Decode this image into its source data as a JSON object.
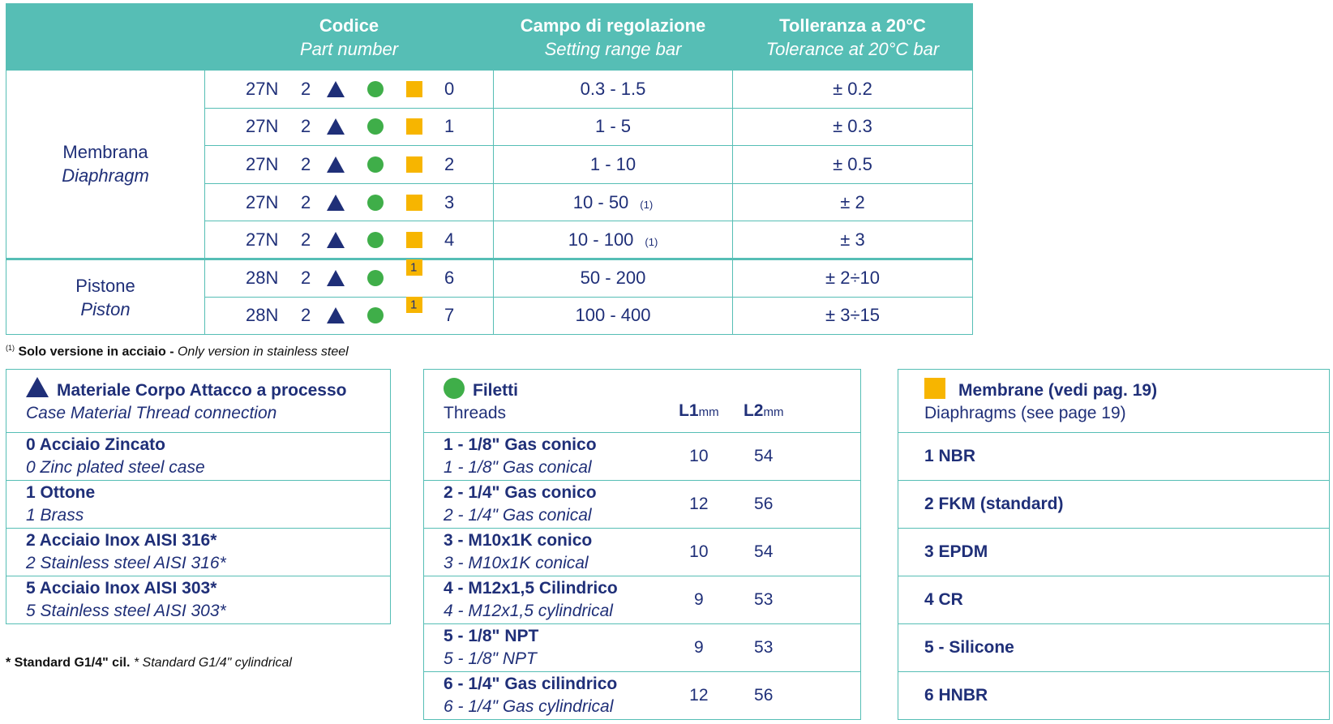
{
  "header": {
    "code_it": "Codice",
    "code_en": "Part number",
    "range_it": "Campo di regolazione",
    "range_en": "Setting range bar",
    "tol_it": "Tolleranza a 20°C",
    "tol_en": "Tolerance at 20°C bar"
  },
  "groups": {
    "membrana_it": "Membrana",
    "membrana_en": "Diaphragm",
    "pistone_it": "Pistone",
    "pistone_en": "Piston"
  },
  "rows": [
    {
      "prefix": "27N",
      "two": "2",
      "sup": "",
      "num": "0",
      "range": "0.3  - 1.5",
      "note": "",
      "tol": "± 0.2"
    },
    {
      "prefix": "27N",
      "two": "2",
      "sup": "",
      "num": "1",
      "range": "1  -  5",
      "note": "",
      "tol": "± 0.3"
    },
    {
      "prefix": "27N",
      "two": "2",
      "sup": "",
      "num": "2",
      "range": "1  - 10",
      "note": "",
      "tol": "± 0.5"
    },
    {
      "prefix": "27N",
      "two": "2",
      "sup": "",
      "num": "3",
      "range": "10 - 50",
      "note": "(1)",
      "tol": "± 2"
    },
    {
      "prefix": "27N",
      "two": "2",
      "sup": "",
      "num": "4",
      "range": "10 - 100",
      "note": "(1)",
      "tol": "± 3"
    },
    {
      "prefix": "28N",
      "two": "2",
      "sup": "1",
      "num": "6",
      "range": "50 - 200",
      "note": "",
      "tol": "± 2÷10"
    },
    {
      "prefix": "28N",
      "two": "2",
      "sup": "1",
      "num": "7",
      "range": "100 - 400",
      "note": "",
      "tol": "± 3÷15"
    }
  ],
  "footnote1": {
    "mark": "(1)",
    "bold": "Solo versione in acciaio -",
    "italic": "Only version in stainless steel"
  },
  "footnote2": {
    "bold": "* Standard G1/4\" cil.",
    "italic": "* Standard G1/4\" cylindrical"
  },
  "material": {
    "title_it": "Materiale Corpo Attacco a processo",
    "title_en": "Case Material Thread connection",
    "items": [
      {
        "it": "0 Acciaio Zincato",
        "en": "0 Zinc plated steel case"
      },
      {
        "it": "1 Ottone",
        "en": "1 Brass"
      },
      {
        "it": "2 Acciaio Inox AISI 316*",
        "en": "2 Stainless steel AISI 316*"
      },
      {
        "it": "5 Acciaio Inox AISI 303*",
        "en": "5 Stainless steel AISI 303*"
      }
    ]
  },
  "threads": {
    "title_it": "Filetti",
    "title_en": "Threads",
    "l1": "L1",
    "l2": "L2",
    "unit": "mm",
    "items": [
      {
        "it": "1 - 1/8\" Gas conico",
        "en": "1 - 1/8\" Gas conical",
        "l1": "10",
        "l2": "54"
      },
      {
        "it": "2 - 1/4\" Gas conico",
        "en": "2 - 1/4\" Gas conical",
        "l1": "12",
        "l2": "56"
      },
      {
        "it": "3 - M10x1K conico",
        "en": "3 - M10x1K conical",
        "l1": "10",
        "l2": "54"
      },
      {
        "it": "4 - M12x1,5 Cilindrico",
        "en": "4 - M12x1,5 cylindrical",
        "l1": "9",
        "l2": "53"
      },
      {
        "it": "5 - 1/8\" NPT",
        "en": "5 - 1/8\" NPT",
        "l1": "9",
        "l2": "53"
      },
      {
        "it": "6 - 1/4\" Gas cilindrico",
        "en": "6 - 1/4\" Gas cylindrical",
        "l1": "12",
        "l2": "56"
      }
    ]
  },
  "diaphragms": {
    "title_it": "Membrane (vedi pag. 19)",
    "title_en": "Diaphragms (see page 19)",
    "items": [
      "1 NBR",
      "2 FKM (standard)",
      "3 EPDM",
      "4 CR",
      "5 - Silicone",
      "6 HNBR"
    ]
  },
  "colors": {
    "teal": "#56beb5",
    "navy": "#1f2f78",
    "green": "#3fae49",
    "yellow": "#f7b500"
  }
}
